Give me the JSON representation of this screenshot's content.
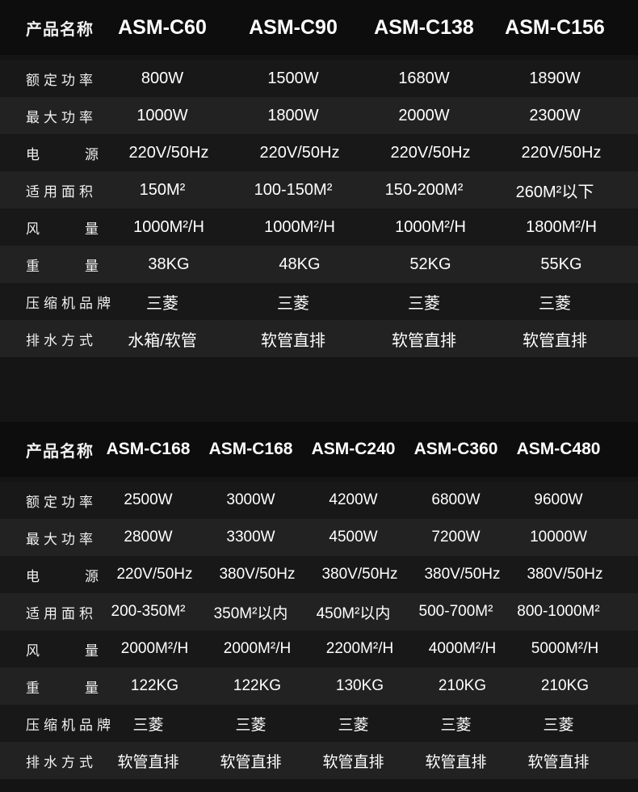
{
  "table1": {
    "header_label": "产品名称",
    "models": [
      "ASM-C60",
      "ASM-C90",
      "ASM-C138",
      "ASM-C156"
    ],
    "rows": [
      {
        "label": "额定功率",
        "values": [
          "800W",
          "1500W",
          "1680W",
          "1890W"
        ]
      },
      {
        "label": "最大功率",
        "values": [
          "1000W",
          "1800W",
          "2000W",
          "2300W"
        ]
      },
      {
        "label": "电源",
        "values": [
          "220V/50Hz",
          "220V/50Hz",
          "220V/50Hz",
          "220V/50Hz"
        ]
      },
      {
        "label": "适用面积",
        "values": [
          "150M²",
          "100-150M²",
          "150-200M²",
          "260M²以下"
        ]
      },
      {
        "label": "风量",
        "values": [
          "1000M²/H",
          "1000M²/H",
          "1000M²/H",
          "1800M²/H"
        ]
      },
      {
        "label": "重量",
        "values": [
          "38KG",
          "48KG",
          "52KG",
          "55KG"
        ]
      },
      {
        "label": "压缩机品牌",
        "values": [
          "三菱",
          "三菱",
          "三菱",
          "三菱"
        ]
      },
      {
        "label": "排水方式",
        "values": [
          "水箱/软管",
          "软管直排",
          "软管直排",
          "软管直排"
        ]
      }
    ]
  },
  "table2": {
    "header_label": "产品名称",
    "models": [
      "ASM-C168",
      "ASM-C168",
      "ASM-C240",
      "ASM-C360",
      "ASM-C480"
    ],
    "rows": [
      {
        "label": "额定功率",
        "values": [
          "2500W",
          "3000W",
          "4200W",
          "6800W",
          "9600W"
        ]
      },
      {
        "label": "最大功率",
        "values": [
          "2800W",
          "3300W",
          "4500W",
          "7200W",
          "10000W"
        ]
      },
      {
        "label": "电源",
        "values": [
          "220V/50Hz",
          "380V/50Hz",
          "380V/50Hz",
          "380V/50Hz",
          "380V/50Hz"
        ]
      },
      {
        "label": "适用面积",
        "values": [
          "200-350M²",
          "350M²以内",
          "450M²以内",
          "500-700M²",
          "800-1000M²"
        ]
      },
      {
        "label": "风量",
        "values": [
          "2000M²/H",
          "2000M²/H",
          "2200M²/H",
          "4000M²/H",
          "5000M²/H"
        ]
      },
      {
        "label": "重量",
        "values": [
          "122KG",
          "122KG",
          "130KG",
          "210KG",
          "210KG"
        ]
      },
      {
        "label": "压缩机品牌",
        "values": [
          "三菱",
          "三菱",
          "三菱",
          "三菱",
          "三菱"
        ]
      },
      {
        "label": "排水方式",
        "values": [
          "软管直排",
          "软管直排",
          "软管直排",
          "软管直排",
          "软管直排"
        ]
      }
    ]
  }
}
